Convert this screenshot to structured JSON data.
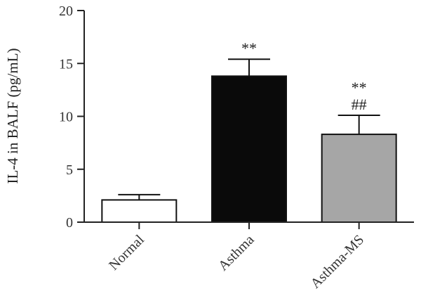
{
  "chart_data": {
    "type": "bar",
    "title": "",
    "xlabel": "",
    "ylabel": "IL-4 in BALF (pg/mL)",
    "ylim": [
      0,
      20
    ],
    "yticks": [
      "0",
      "5",
      "10",
      "15",
      "20"
    ],
    "categories": [
      "Normal",
      "Asthma",
      "Asthma-MS"
    ],
    "values": [
      2.1,
      13.8,
      8.3
    ],
    "errors": [
      0.5,
      1.6,
      1.8
    ],
    "fill_colors": [
      "#ffffff",
      "#0a0a0a",
      "#a6a6a6"
    ],
    "annotations": [
      [],
      [
        "**"
      ],
      [
        "**",
        "##"
      ]
    ],
    "grid": false,
    "legend": "none"
  }
}
